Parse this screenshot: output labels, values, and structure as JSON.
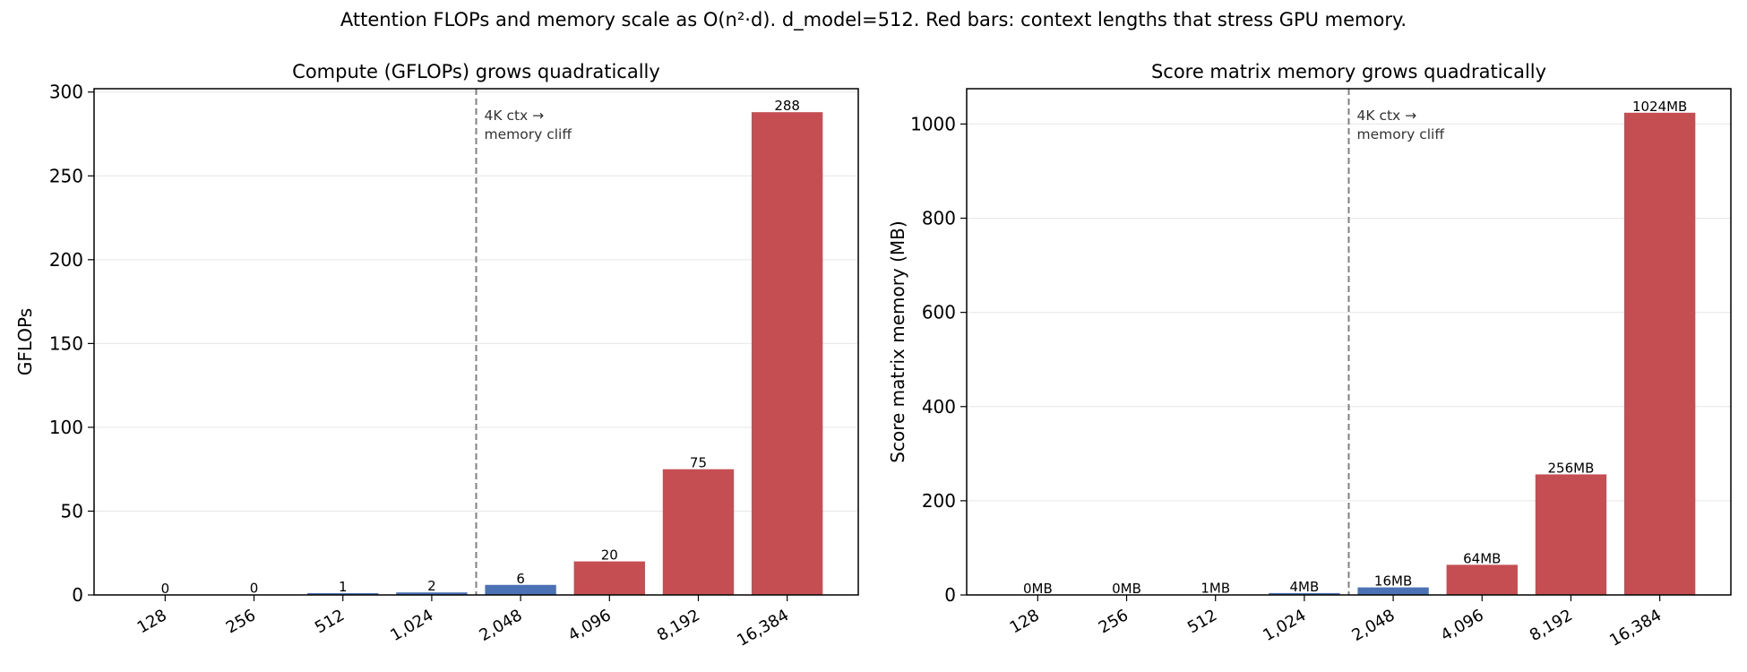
{
  "figure": {
    "suptitle": "Attention FLOPs and memory scale as O(n²·d). d_model=512. Red bars: context lengths that stress GPU memory."
  },
  "colors": {
    "normal_bar": "#4a72b5",
    "stress_bar": "#c44e52",
    "cliff_line": "#808080",
    "grid": "#e6e6e6"
  },
  "chart_data": [
    {
      "type": "bar",
      "title": "Compute (GFLOPs) grows quadratically",
      "xlabel": "",
      "ylabel": "GFLOPs",
      "categories": [
        "128",
        "256",
        "512",
        "1,024",
        "2,048",
        "4,096",
        "8,192",
        "16,384"
      ],
      "values": [
        0.07,
        0.27,
        1.07,
        1.5,
        6,
        20,
        75,
        288
      ],
      "data_labels": [
        "0",
        "0",
        "1",
        "2",
        "6",
        "20",
        "75",
        "288"
      ],
      "stress": [
        false,
        false,
        false,
        false,
        false,
        true,
        true,
        true
      ],
      "ylim": [
        0,
        302
      ],
      "yticks": [
        0,
        50,
        100,
        150,
        200,
        250,
        300
      ],
      "ytick_labels": [
        "0",
        "50",
        "100",
        "150",
        "200",
        "250",
        "300"
      ],
      "grid": "y",
      "cliff_after_index": 3,
      "annotation": [
        "4K ctx →",
        "memory cliff"
      ]
    },
    {
      "type": "bar",
      "title": "Score matrix memory grows quadratically",
      "xlabel": "",
      "ylabel": "Score matrix memory (MB)",
      "categories": [
        "128",
        "256",
        "512",
        "1,024",
        "2,048",
        "4,096",
        "8,192",
        "16,384"
      ],
      "values": [
        0.06,
        0.25,
        1,
        4,
        16,
        64,
        256,
        1024
      ],
      "data_labels": [
        "0MB",
        "0MB",
        "1MB",
        "4MB",
        "16MB",
        "64MB",
        "256MB",
        "1024MB"
      ],
      "stress": [
        false,
        false,
        false,
        false,
        false,
        true,
        true,
        true
      ],
      "ylim": [
        0,
        1075
      ],
      "yticks": [
        0,
        200,
        400,
        600,
        800,
        1000
      ],
      "ytick_labels": [
        "0",
        "200",
        "400",
        "600",
        "800",
        "1000"
      ],
      "grid": "y",
      "cliff_after_index": 3,
      "annotation": [
        "4K ctx →",
        "memory cliff"
      ]
    }
  ]
}
